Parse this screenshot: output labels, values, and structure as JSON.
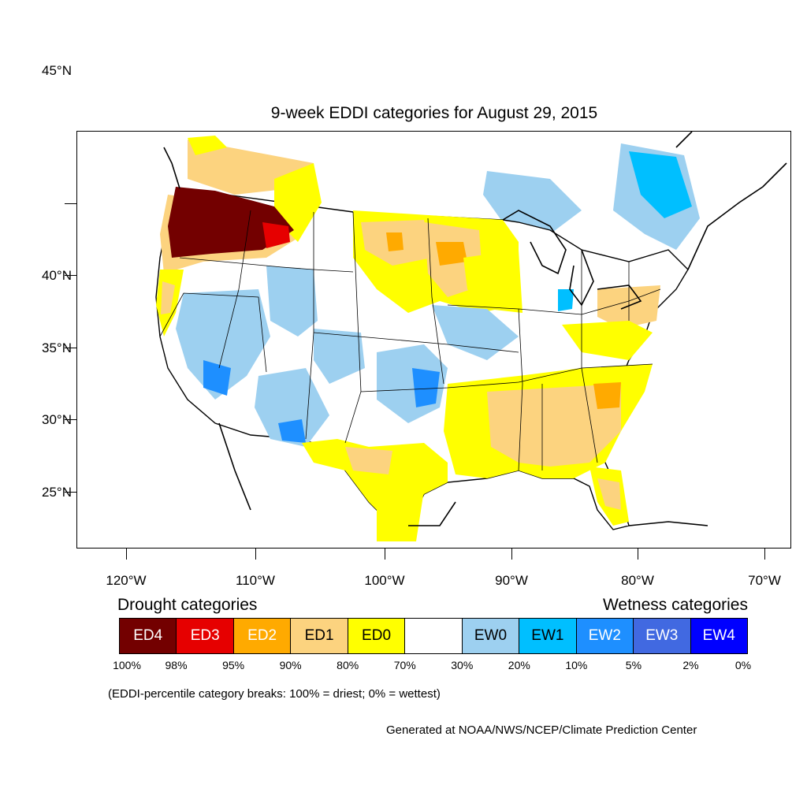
{
  "title": "9-week EDDI categories for August 29, 2015",
  "lat_labels": [
    "45°N",
    "40°N",
    "35°N",
    "30°N",
    "25°N"
  ],
  "lon_labels": [
    "120°W",
    "110°W",
    "100°W",
    "90°W",
    "80°W",
    "70°W"
  ],
  "legend": {
    "drought_heading": "Drought categories",
    "wetness_heading": "Wetness categories",
    "categories": [
      {
        "label": "ED4",
        "color": "#730000",
        "text_color": "#ffffff"
      },
      {
        "label": "ED3",
        "color": "#e60000",
        "text_color": "#ffffff"
      },
      {
        "label": "ED2",
        "color": "#ffaa00",
        "text_color": "#ffffff"
      },
      {
        "label": "ED1",
        "color": "#fcd37f",
        "text_color": "#000000"
      },
      {
        "label": "ED0",
        "color": "#ffff00",
        "text_color": "#000000"
      },
      {
        "label": "",
        "color": "#ffffff",
        "text_color": "#000000"
      },
      {
        "label": "EW0",
        "color": "#9dd0f0",
        "text_color": "#000000"
      },
      {
        "label": "EW1",
        "color": "#00bfff",
        "text_color": "#000000"
      },
      {
        "label": "EW2",
        "color": "#1e8fff",
        "text_color": "#ffffff"
      },
      {
        "label": "EW3",
        "color": "#4169e1",
        "text_color": "#ffffff"
      },
      {
        "label": "EW4",
        "color": "#0000ff",
        "text_color": "#ffffff"
      }
    ],
    "percentile_breaks": [
      "100%",
      "98%",
      "95%",
      "90%",
      "80%",
      "70%",
      "30%",
      "20%",
      "10%",
      "5%",
      "2%",
      "0%"
    ]
  },
  "note": "(EDDI-percentile category breaks: 100% = driest; 0% = wettest)",
  "credit": "Generated at NOAA/NWS/NCEP/Climate Prediction Center"
}
